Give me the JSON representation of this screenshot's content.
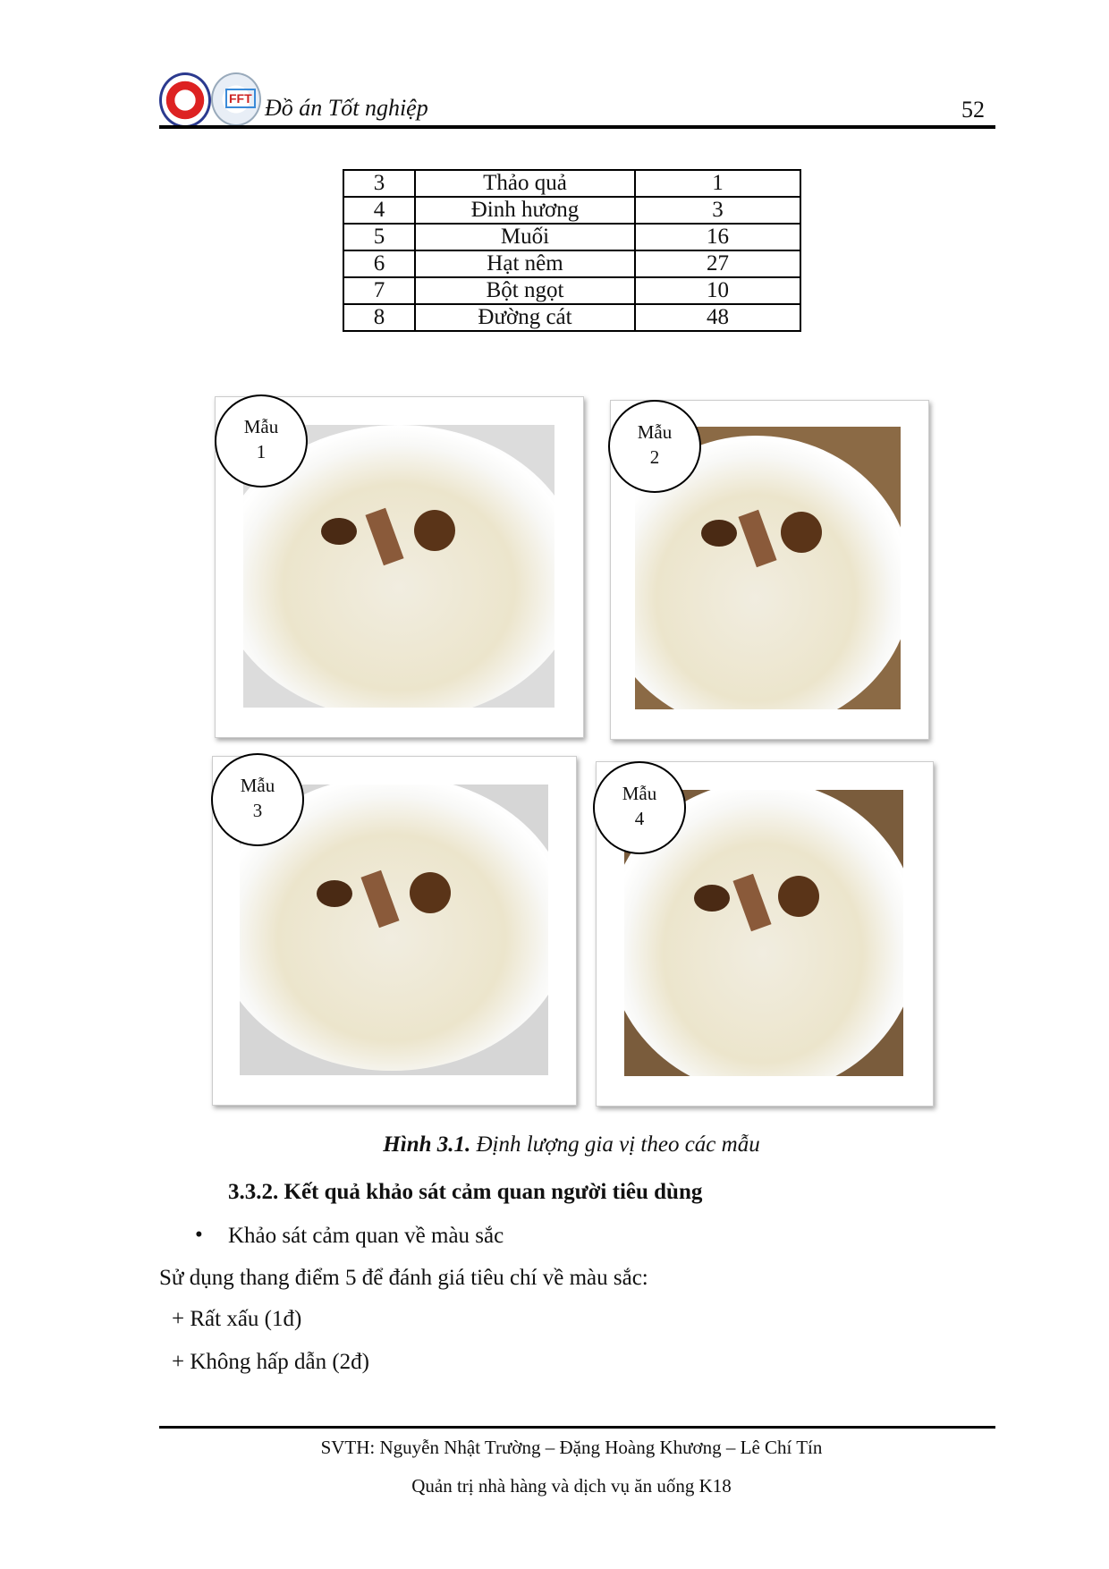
{
  "header": {
    "title": "Đồ án Tốt nghiệp",
    "page_number": "52",
    "logos": [
      "university-logo",
      "fft-logo"
    ]
  },
  "table": {
    "rows": [
      [
        "3",
        "Thảo quả",
        "1"
      ],
      [
        "4",
        "Đinh hương",
        "3"
      ],
      [
        "5",
        "Muối",
        "16"
      ],
      [
        "6",
        "Hạt nêm",
        "27"
      ],
      [
        "7",
        "Bột ngọt",
        "10"
      ],
      [
        "8",
        "Đường cát",
        "48"
      ]
    ]
  },
  "figures": [
    {
      "label_line1": "Mẫu",
      "label_line2": "1"
    },
    {
      "label_line1": "Mẫu",
      "label_line2": "2"
    },
    {
      "label_line1": "Mẫu",
      "label_line2": "3"
    },
    {
      "label_line1": "Mẫu",
      "label_line2": "4"
    }
  ],
  "caption": {
    "prefix": "Hình 3.1.",
    "text": " Định lượng gia vị theo các mẫu"
  },
  "section": {
    "heading": "3.3.2.  Kết quả khảo sát cảm quan người tiêu dùng",
    "bullet": "Khảo sát cảm quan về màu sắc",
    "paragraph": "Sử dụng thang điểm 5 để đánh giá tiêu chí về màu sắc:",
    "items": [
      "+ Rất xấu (1đ)",
      "+ Không hấp dẫn (2đ)"
    ]
  },
  "footer": {
    "line1": "SVTH: Nguyễn Nhật Trường – Đặng Hoàng Khương – Lê Chí Tín",
    "line2": "Quản trị nhà hàng và dịch vụ ăn uống K18"
  }
}
